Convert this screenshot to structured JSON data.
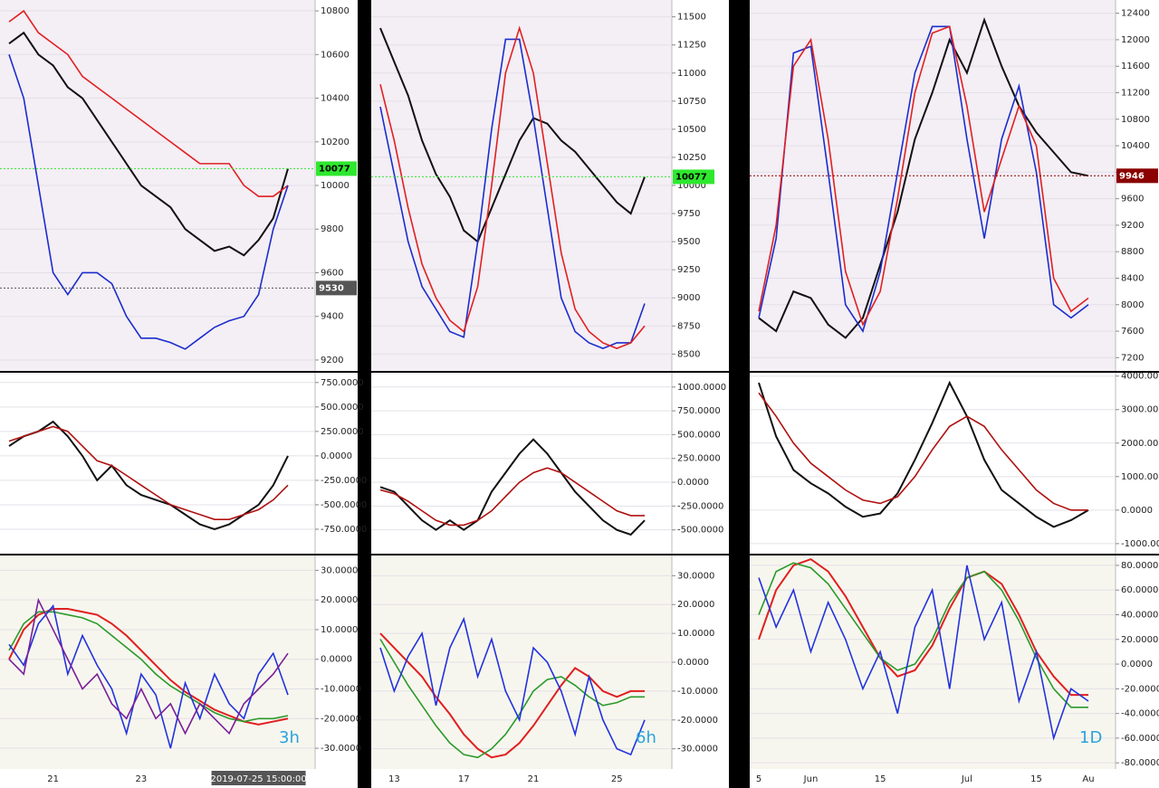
{
  "chart_data": [
    {
      "type": "line",
      "ylim": [
        9150,
        10850
      ],
      "yticks": [
        9200,
        9400,
        9600,
        9800,
        10000,
        10200,
        10400,
        10600,
        10800
      ],
      "price_labels": [
        10077,
        9530
      ],
      "price_label_colors": [
        "#2ee82e",
        "#555555"
      ],
      "series": [
        {
          "color": "#111111",
          "values": [
            10650,
            10700,
            10600,
            10550,
            10450,
            10400,
            10300,
            10200,
            10100,
            10000,
            9950,
            9900,
            9800,
            9750,
            9700,
            9720,
            9680,
            9750,
            9850,
            10077
          ]
        },
        {
          "color": "#e02020",
          "values": [
            10750,
            10800,
            10700,
            10650,
            10600,
            10500,
            10450,
            10400,
            10350,
            10300,
            10250,
            10200,
            10150,
            10100,
            10100,
            10100,
            10000,
            9950,
            9950,
            10000
          ]
        },
        {
          "color": "#1a2ecc",
          "values": [
            10600,
            10400,
            10000,
            9600,
            9500,
            9600,
            9600,
            9550,
            9400,
            9300,
            9300,
            9280,
            9250,
            9300,
            9350,
            9380,
            9400,
            9500,
            9800,
            10000
          ]
        }
      ]
    },
    {
      "type": "line",
      "ylim": [
        -1000,
        850
      ],
      "yticks": [
        {
          "value": 750,
          "label": "750.0000"
        },
        {
          "value": 500,
          "label": "500.0000"
        },
        {
          "value": 250,
          "label": "250.0000"
        },
        {
          "value": 0,
          "label": "0.0000"
        },
        {
          "value": -250,
          "label": "-250.0000"
        },
        {
          "value": -500,
          "label": "-500.0000"
        },
        {
          "value": -750,
          "label": "-750.0000"
        }
      ],
      "series": [
        {
          "color": "#111111",
          "values": [
            100,
            200,
            250,
            350,
            200,
            0,
            -250,
            -100,
            -300,
            -400,
            -450,
            -500,
            -600,
            -700,
            -750,
            -700,
            -600,
            -500,
            -300,
            0
          ]
        },
        {
          "color": "#b01010",
          "values": [
            150,
            200,
            250,
            300,
            250,
            100,
            -50,
            -100,
            -200,
            -300,
            -400,
            -500,
            -550,
            -600,
            -650,
            -650,
            -600,
            -550,
            -450,
            -300
          ]
        }
      ]
    },
    {
      "type": "line",
      "ylim": [
        -37,
        35
      ],
      "label": "3h",
      "yticks": [
        {
          "value": 30,
          "label": "30.0000"
        },
        {
          "value": 20,
          "label": "20.0000"
        },
        {
          "value": 10,
          "label": "10.0000"
        },
        {
          "value": 0,
          "label": "0.0000"
        },
        {
          "value": -10,
          "label": "-10.0000"
        },
        {
          "value": -20,
          "label": "-20.0000"
        },
        {
          "value": -30,
          "label": "-30.0000"
        }
      ],
      "categories": [
        null,
        null,
        null,
        "21",
        null,
        null,
        null,
        null,
        null,
        "23",
        null,
        null,
        null,
        null,
        null,
        null,
        null,
        "2019-07-25 15:00:00",
        null,
        null
      ],
      "series": [
        {
          "color": "#e02020",
          "values": [
            0,
            10,
            15,
            17,
            17,
            16,
            15,
            12,
            8,
            3,
            -2,
            -7,
            -11,
            -14,
            -17,
            -19,
            -21,
            -22,
            -21,
            -20
          ]
        },
        {
          "color": "#2a9a2a",
          "values": [
            3,
            12,
            16,
            16,
            15,
            14,
            12,
            8,
            4,
            0,
            -5,
            -9,
            -12,
            -15,
            -18,
            -20,
            -21,
            -20,
            -20,
            -19
          ]
        },
        {
          "color": "#2233dd",
          "values": [
            5,
            -2,
            12,
            18,
            -5,
            8,
            -2,
            -10,
            -25,
            -5,
            -12,
            -30,
            -8,
            -20,
            -5,
            -15,
            -20,
            -5,
            2,
            -12
          ]
        },
        {
          "color": "#7a1f9a",
          "values": [
            0,
            -5,
            20,
            10,
            0,
            -10,
            -5,
            -15,
            -20,
            -10,
            -20,
            -15,
            -25,
            -15,
            -20,
            -25,
            -15,
            -10,
            -5,
            2
          ]
        }
      ]
    },
    {
      "type": "line",
      "ylim": [
        8350,
        11650
      ],
      "yticks": [
        8500,
        8750,
        9000,
        9250,
        9500,
        9750,
        10000,
        10250,
        10500,
        10750,
        11000,
        11250,
        11500
      ],
      "price_labels": [
        10077
      ],
      "price_label_colors": [
        "#2ee82e"
      ],
      "series": [
        {
          "color": "#111111",
          "values": [
            11400,
            11100,
            10800,
            10400,
            10100,
            9900,
            9600,
            9500,
            9800,
            10100,
            10400,
            10600,
            10550,
            10400,
            10300,
            10150,
            10000,
            9850,
            9750,
            10077
          ]
        },
        {
          "color": "#1a2ecc",
          "values": [
            10700,
            10100,
            9500,
            9100,
            8900,
            8700,
            8650,
            9500,
            10500,
            11300,
            11300,
            10600,
            9800,
            9000,
            8700,
            8600,
            8550,
            8600,
            8600,
            8950
          ]
        },
        {
          "color": "#e02020",
          "values": [
            10900,
            10400,
            9800,
            9300,
            9000,
            8800,
            8700,
            9100,
            10000,
            11000,
            11400,
            11000,
            10200,
            9400,
            8900,
            8700,
            8600,
            8550,
            8600,
            8750
          ]
        }
      ]
    },
    {
      "type": "line",
      "ylim": [
        -750,
        1150
      ],
      "yticks": [
        {
          "value": 1000,
          "label": "1000.0000"
        },
        {
          "value": 750,
          "label": "750.0000"
        },
        {
          "value": 500,
          "label": "500.0000"
        },
        {
          "value": 250,
          "label": "250.0000"
        },
        {
          "value": 0,
          "label": "0.0000"
        },
        {
          "value": -250,
          "label": "-250.0000"
        },
        {
          "value": -500,
          "label": "-500.0000"
        }
      ],
      "series": [
        {
          "color": "#111111",
          "values": [
            -50,
            -100,
            -250,
            -400,
            -500,
            -400,
            -500,
            -400,
            -100,
            100,
            300,
            450,
            300,
            100,
            -100,
            -250,
            -400,
            -500,
            -550,
            -400
          ]
        },
        {
          "color": "#b01010",
          "values": [
            -80,
            -120,
            -200,
            -300,
            -400,
            -450,
            -450,
            -400,
            -300,
            -150,
            0,
            100,
            150,
            100,
            0,
            -100,
            -200,
            -300,
            -350,
            -350
          ]
        }
      ]
    },
    {
      "type": "line",
      "ylim": [
        -37,
        37
      ],
      "label": "6h",
      "yticks": [
        {
          "value": 30,
          "label": "30.0000"
        },
        {
          "value": 20,
          "label": "20.0000"
        },
        {
          "value": 10,
          "label": "10.0000"
        },
        {
          "value": 0,
          "label": "0.0000"
        },
        {
          "value": -10,
          "label": "-10.0000"
        },
        {
          "value": -20,
          "label": "-20.0000"
        },
        {
          "value": -30,
          "label": "-30.0000"
        }
      ],
      "categories": [
        null,
        "13",
        null,
        null,
        null,
        null,
        "17",
        null,
        null,
        null,
        null,
        "21",
        null,
        null,
        null,
        null,
        null,
        "25",
        null,
        null
      ],
      "series": [
        {
          "color": "#e02020",
          "values": [
            10,
            5,
            0,
            -5,
            -12,
            -18,
            -25,
            -30,
            -33,
            -32,
            -28,
            -22,
            -15,
            -8,
            -2,
            -5,
            -10,
            -12,
            -10,
            -10
          ]
        },
        {
          "color": "#2a9a2a",
          "values": [
            8,
            0,
            -8,
            -15,
            -22,
            -28,
            -32,
            -33,
            -30,
            -25,
            -18,
            -10,
            -6,
            -5,
            -8,
            -12,
            -15,
            -14,
            -12,
            -12
          ]
        },
        {
          "color": "#2233dd",
          "values": [
            5,
            -10,
            2,
            10,
            -15,
            5,
            15,
            -5,
            8,
            -10,
            -20,
            5,
            0,
            -10,
            -25,
            -5,
            -20,
            -30,
            -32,
            -20
          ]
        }
      ]
    },
    {
      "type": "line",
      "ylim": [
        7000,
        12600
      ],
      "yticks": [
        7200,
        7600,
        8000,
        8400,
        8800,
        9200,
        9600,
        10000,
        10400,
        10800,
        11200,
        11600,
        12000,
        12400
      ],
      "price_labels": [
        9946
      ],
      "price_label_colors": [
        "#8b0000"
      ],
      "series": [
        {
          "color": "#111111",
          "values": [
            7800,
            7600,
            8200,
            8100,
            7700,
            7500,
            7800,
            8600,
            9400,
            10500,
            11200,
            12000,
            11500,
            12300,
            11600,
            11000,
            10600,
            10300,
            10000,
            9946
          ]
        },
        {
          "color": "#1a2ecc",
          "values": [
            7800,
            9000,
            11800,
            11900,
            10000,
            8000,
            7600,
            8500,
            10000,
            11500,
            12200,
            12200,
            10500,
            9000,
            10500,
            11300,
            10000,
            8000,
            7800,
            8000
          ]
        },
        {
          "color": "#e02020",
          "values": [
            7900,
            9200,
            11600,
            12000,
            10500,
            8500,
            7700,
            8200,
            9600,
            11200,
            12100,
            12200,
            11000,
            9400,
            10200,
            11000,
            10400,
            8400,
            7900,
            8100
          ]
        }
      ]
    },
    {
      "type": "line",
      "ylim": [
        -1300,
        4100
      ],
      "yticks": [
        {
          "value": 4000,
          "label": "4000.0000"
        },
        {
          "value": 3000,
          "label": "3000.0000"
        },
        {
          "value": 2000,
          "label": "2000.0000"
        },
        {
          "value": 1000,
          "label": "1000.0000"
        },
        {
          "value": 0,
          "label": "0.0000"
        },
        {
          "value": -1000,
          "label": "-1000.0000"
        }
      ],
      "series": [
        {
          "color": "#111111",
          "values": [
            3800,
            2200,
            1200,
            800,
            500,
            100,
            -200,
            -100,
            500,
            1500,
            2600,
            3800,
            2800,
            1500,
            600,
            200,
            -200,
            -500,
            -300,
            0
          ]
        },
        {
          "color": "#b01010",
          "values": [
            3500,
            2800,
            2000,
            1400,
            1000,
            600,
            300,
            200,
            400,
            1000,
            1800,
            2500,
            2800,
            2500,
            1800,
            1200,
            600,
            200,
            0,
            0
          ]
        }
      ]
    },
    {
      "type": "line",
      "ylim": [
        -85,
        88
      ],
      "label": "1D",
      "yticks": [
        {
          "value": 80,
          "label": "80.0000"
        },
        {
          "value": 60,
          "label": "60.0000"
        },
        {
          "value": 40,
          "label": "40.0000"
        },
        {
          "value": 20,
          "label": "20.0000"
        },
        {
          "value": 0,
          "label": "0.0000"
        },
        {
          "value": -20,
          "label": "-20.0000"
        },
        {
          "value": -40,
          "label": "-40.0000"
        },
        {
          "value": -60,
          "label": "-60.0000"
        },
        {
          "value": -80,
          "label": "-80.0000"
        }
      ],
      "categories": [
        "5",
        null,
        null,
        "Jun",
        null,
        null,
        null,
        "15",
        null,
        null,
        null,
        null,
        "Jul",
        null,
        null,
        null,
        "15",
        null,
        null,
        "Au"
      ],
      "series": [
        {
          "color": "#e02020",
          "values": [
            20,
            60,
            80,
            85,
            75,
            55,
            30,
            5,
            -10,
            -5,
            15,
            45,
            70,
            75,
            65,
            40,
            10,
            -10,
            -25,
            -25
          ]
        },
        {
          "color": "#2a9a2a",
          "values": [
            40,
            75,
            82,
            78,
            65,
            45,
            25,
            5,
            -5,
            0,
            20,
            50,
            70,
            75,
            60,
            35,
            5,
            -20,
            -35,
            -35
          ]
        },
        {
          "color": "#2233dd",
          "values": [
            70,
            30,
            60,
            10,
            50,
            20,
            -20,
            10,
            -40,
            30,
            60,
            -20,
            80,
            20,
            50,
            -30,
            10,
            -60,
            -20,
            -30
          ]
        }
      ]
    }
  ]
}
